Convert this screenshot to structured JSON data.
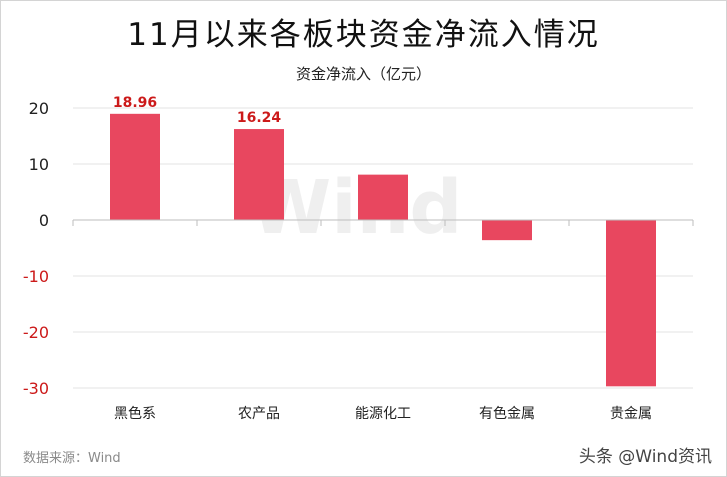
{
  "title": "11月以来各板块资金净流入情况",
  "subtitle": "资金净流入（亿元）",
  "source": "数据来源：Wind",
  "watermark": "Wind",
  "corner_tag": "头条 @Wind资讯",
  "colors": {
    "bar": "#e8475f",
    "label": "#cc1a1a",
    "positive_tick": "#222222",
    "negative_tick": "#cc1a1a",
    "grid": "#e3e3e3"
  },
  "chart_data": {
    "type": "bar",
    "title": "11月以来各板块资金净流入情况",
    "ylabel": "资金净流入（亿元）",
    "xlabel": "",
    "categories": [
      "黑色系",
      "农产品",
      "能源化工",
      "有色金属",
      "贵金属"
    ],
    "values": [
      18.96,
      16.24,
      8.1,
      -3.6,
      -29.7
    ],
    "data_labels": [
      "18.96",
      "16.24",
      null,
      null,
      null
    ],
    "yticks": [
      20,
      10,
      0,
      -10,
      -20,
      -30
    ],
    "ylim": [
      -30,
      20
    ],
    "grid": true,
    "legend": "none"
  }
}
